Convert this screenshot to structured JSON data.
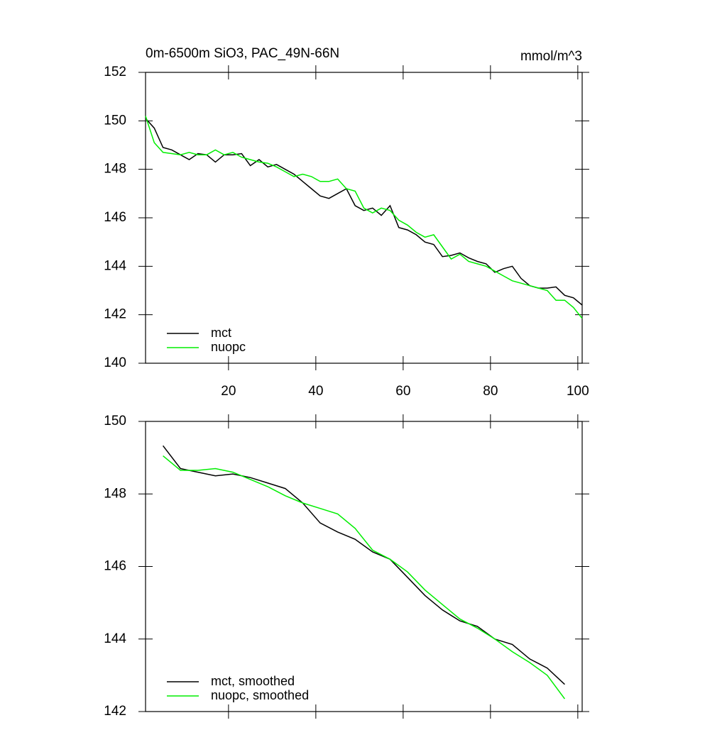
{
  "chart_data": [
    {
      "type": "line",
      "title": "0m-6500m SiO3, PAC_49N-66N",
      "units_label": "mmol/m^3",
      "x": [
        1,
        3,
        5,
        7,
        9,
        11,
        13,
        15,
        17,
        19,
        21,
        23,
        25,
        27,
        29,
        31,
        33,
        35,
        37,
        39,
        41,
        43,
        45,
        47,
        49,
        51,
        53,
        55,
        57,
        59,
        61,
        63,
        65,
        67,
        69,
        71,
        73,
        75,
        77,
        79,
        81,
        83,
        85,
        87,
        89,
        91,
        93,
        95,
        97,
        99,
        101
      ],
      "series": [
        {
          "name": "mct",
          "color": "#000000",
          "values": [
            150.1,
            149.7,
            148.9,
            148.8,
            148.6,
            148.4,
            148.65,
            148.6,
            148.3,
            148.6,
            148.6,
            148.65,
            148.15,
            148.4,
            148.1,
            148.2,
            148.0,
            147.8,
            147.5,
            147.2,
            146.9,
            146.8,
            147.0,
            147.2,
            146.5,
            146.3,
            146.4,
            146.1,
            146.5,
            145.6,
            145.5,
            145.3,
            145.0,
            144.9,
            144.4,
            144.45,
            144.55,
            144.35,
            144.2,
            144.1,
            143.75,
            143.9,
            144.0,
            143.5,
            143.2,
            143.1,
            143.1,
            143.15,
            142.8,
            142.7,
            142.4
          ]
        },
        {
          "name": "nuopc",
          "color": "#00ee00",
          "values": [
            150.2,
            149.1,
            148.7,
            148.65,
            148.6,
            148.7,
            148.6,
            148.6,
            148.8,
            148.6,
            148.7,
            148.5,
            148.4,
            148.3,
            148.25,
            148.1,
            147.9,
            147.7,
            147.8,
            147.7,
            147.5,
            147.5,
            147.6,
            147.2,
            147.1,
            146.4,
            146.2,
            146.4,
            146.3,
            145.9,
            145.7,
            145.4,
            145.2,
            145.3,
            144.8,
            144.3,
            144.5,
            144.2,
            144.1,
            144.0,
            143.8,
            143.6,
            143.4,
            143.3,
            143.2,
            143.1,
            143.0,
            142.6,
            142.6,
            142.3,
            141.85
          ]
        }
      ],
      "xlim": [
        1,
        101
      ],
      "xticks": [
        20,
        40,
        60,
        80,
        100
      ],
      "show_xtick_labels": true,
      "ylim": [
        140,
        152
      ],
      "yticks": [
        140,
        142,
        144,
        146,
        148,
        150,
        152
      ],
      "legend": "bottom-left"
    },
    {
      "type": "line",
      "x": [
        5,
        9,
        13,
        17,
        21,
        25,
        29,
        33,
        37,
        41,
        45,
        49,
        53,
        57,
        61,
        65,
        69,
        73,
        77,
        81,
        85,
        89,
        93,
        97
      ],
      "series": [
        {
          "name": "mct, smoothed",
          "color": "#000000",
          "values": [
            149.33,
            148.7,
            148.6,
            148.5,
            148.55,
            148.45,
            148.3,
            148.15,
            147.75,
            147.2,
            146.95,
            146.75,
            146.4,
            146.2,
            145.7,
            145.2,
            144.8,
            144.5,
            144.35,
            144.0,
            143.85,
            143.45,
            143.2,
            142.75
          ]
        },
        {
          "name": "nuopc, smoothed",
          "color": "#00ee00",
          "values": [
            149.05,
            148.65,
            148.65,
            148.7,
            148.6,
            148.4,
            148.2,
            147.95,
            147.75,
            147.6,
            147.45,
            147.05,
            146.45,
            146.2,
            145.85,
            145.35,
            144.95,
            144.55,
            144.3,
            144.0,
            143.65,
            143.35,
            143.0,
            142.35
          ]
        }
      ],
      "xlim": [
        1,
        101
      ],
      "xticks": [
        20,
        40,
        60,
        80,
        100
      ],
      "show_xtick_labels": false,
      "ylim": [
        142,
        150
      ],
      "yticks": [
        142,
        144,
        146,
        148,
        150
      ],
      "legend": "bottom-left"
    }
  ]
}
